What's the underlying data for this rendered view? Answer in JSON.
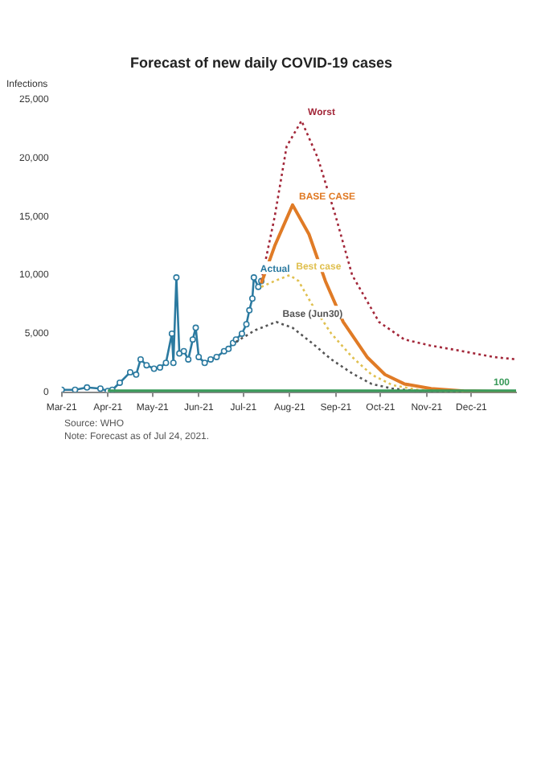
{
  "chart_data": {
    "type": "line",
    "title": "Forecast of new daily COVID-19 cases",
    "ylabel": "Infections",
    "xlim": [
      "2021-03-01",
      "2021-12-31"
    ],
    "xticks": [
      {
        "value": "2021-03-01",
        "label": "Mar-21"
      },
      {
        "value": "2021-04-01",
        "label": "Apr-21"
      },
      {
        "value": "2021-05-01",
        "label": "May-21"
      },
      {
        "value": "2021-06-01",
        "label": "Jun-21"
      },
      {
        "value": "2021-07-01",
        "label": "Jul-21"
      },
      {
        "value": "2021-08-01",
        "label": "Aug-21"
      },
      {
        "value": "2021-09-01",
        "label": "Sep-21"
      },
      {
        "value": "2021-10-01",
        "label": "Oct-21"
      },
      {
        "value": "2021-11-01",
        "label": "Nov-21"
      },
      {
        "value": "2021-12-01",
        "label": "Dec-21"
      }
    ],
    "ylim": [
      0,
      25000
    ],
    "yticks": [
      0,
      {
        "value": 5000,
        "label": "5,000"
      },
      {
        "value": 10000,
        "label": "10,000"
      },
      {
        "value": 15000,
        "label": "15,000"
      },
      {
        "value": 20000,
        "label": "20,000"
      },
      {
        "value": 25000,
        "label": "25,000"
      }
    ],
    "grid": false,
    "legend": false,
    "series": [
      {
        "name": "100",
        "color": "#3a9a5a",
        "line_style": "solid",
        "marker": "none",
        "x": [
          "2021-04-01",
          "2021-12-31"
        ],
        "values": [
          100,
          100
        ]
      },
      {
        "name": "Base (Jun30)",
        "color": "#555555",
        "line_style": "dotted",
        "marker": "none",
        "x": [
          "2021-06-26",
          "2021-07-09",
          "2021-07-23",
          "2021-08-03",
          "2021-08-16",
          "2021-08-29",
          "2021-09-12",
          "2021-09-25",
          "2021-10-09",
          "2021-10-26",
          "2021-11-26"
        ],
        "values": [
          4300,
          5300,
          6000,
          5500,
          4200,
          2800,
          1600,
          700,
          300,
          100,
          0
        ]
      },
      {
        "name": "Best case",
        "color": "#e0c050",
        "line_style": "dotted",
        "marker": "none",
        "x": [
          "2021-07-13",
          "2021-07-22",
          "2021-08-01",
          "2021-08-07",
          "2021-08-16",
          "2021-08-29",
          "2021-09-12",
          "2021-09-25",
          "2021-10-09",
          "2021-10-26",
          "2021-11-26"
        ],
        "values": [
          9000,
          9500,
          10000,
          9500,
          7500,
          5000,
          3000,
          1500,
          600,
          200,
          0
        ]
      },
      {
        "name": "BASE CASE",
        "color": "#e07b26",
        "line_style": "solid",
        "marker": "none",
        "x": [
          "2021-07-13",
          "2021-07-22",
          "2021-08-03",
          "2021-08-14",
          "2021-08-25",
          "2021-09-06",
          "2021-09-22",
          "2021-10-04",
          "2021-10-17",
          "2021-11-04",
          "2021-11-26",
          "2021-12-31"
        ],
        "values": [
          9300,
          12500,
          16000,
          13500,
          9500,
          6000,
          3000,
          1500,
          700,
          300,
          100,
          0
        ]
      },
      {
        "name": "Worst",
        "color": "#a3283a",
        "line_style": "dotted",
        "marker": "none",
        "x": [
          "2021-07-13",
          "2021-07-22",
          "2021-07-30",
          "2021-08-09",
          "2021-08-20",
          "2021-09-01",
          "2021-09-12",
          "2021-09-30",
          "2021-10-17",
          "2021-11-03",
          "2021-11-25",
          "2021-12-16",
          "2021-12-31"
        ],
        "values": [
          9500,
          15000,
          21000,
          23200,
          20000,
          15000,
          10000,
          6000,
          4500,
          4000,
          3500,
          3000,
          2800
        ]
      },
      {
        "name": "Actual",
        "color": "#2b7aa0",
        "line_style": "solid",
        "marker": "circle",
        "x": [
          "2021-03-01",
          "2021-03-10",
          "2021-03-18",
          "2021-03-27",
          "2021-04-01",
          "2021-04-04",
          "2021-04-09",
          "2021-04-16",
          "2021-04-20",
          "2021-04-23",
          "2021-04-27",
          "2021-05-02",
          "2021-05-06",
          "2021-05-10",
          "2021-05-14",
          "2021-05-15",
          "2021-05-17",
          "2021-05-19",
          "2021-05-22",
          "2021-05-25",
          "2021-05-28",
          "2021-05-30",
          "2021-06-01",
          "2021-06-05",
          "2021-06-09",
          "2021-06-13",
          "2021-06-18",
          "2021-06-21",
          "2021-06-24",
          "2021-06-26",
          "2021-06-30",
          "2021-07-03",
          "2021-07-05",
          "2021-07-07",
          "2021-07-08",
          "2021-07-11",
          "2021-07-13"
        ],
        "values": [
          200,
          200,
          400,
          300,
          100,
          200,
          800,
          1700,
          1500,
          2800,
          2300,
          2000,
          2100,
          2500,
          5000,
          2500,
          9800,
          3300,
          3500,
          2800,
          4500,
          5500,
          3000,
          2500,
          2800,
          3000,
          3500,
          3700,
          4200,
          4500,
          5000,
          5800,
          7000,
          8000,
          9800,
          9000,
          9500
        ]
      }
    ],
    "annotations": [
      "Source: WHO",
      "Note: Forecast as of Jul 24, 2021."
    ]
  }
}
